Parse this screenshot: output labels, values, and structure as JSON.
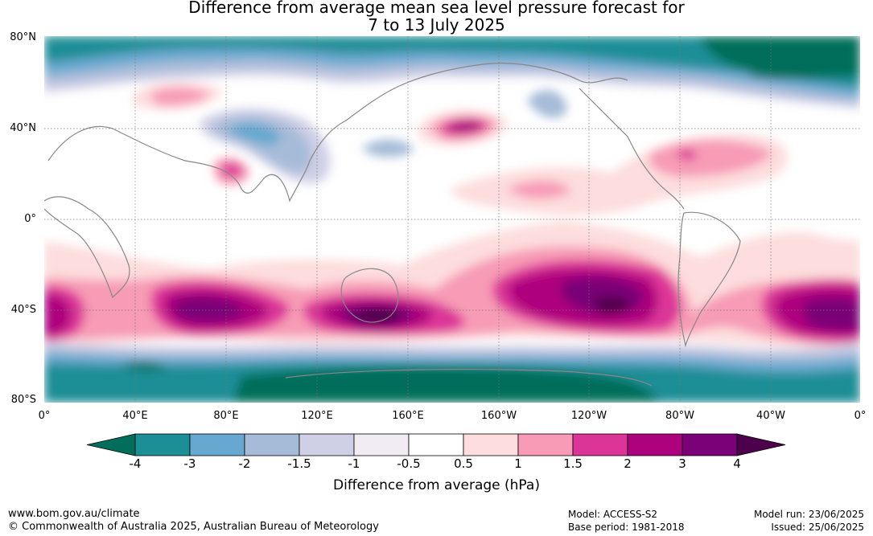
{
  "title": {
    "line1": "Difference from average mean sea level pressure forecast for",
    "line2": "7 to 13 July 2025"
  },
  "lat_labels": [
    "80°N",
    "40°N",
    "0°",
    "40°S",
    "80°S"
  ],
  "lon_labels": [
    "0°",
    "40°E",
    "80°E",
    "120°E",
    "160°E",
    "160°W",
    "120°W",
    "80°W",
    "40°W",
    "0°"
  ],
  "colorbar": {
    "title": "Difference from average (hPa)",
    "ticks": [
      "-4",
      "-3",
      "-2",
      "-1.5",
      "-1",
      "-0.5",
      "0.5",
      "1",
      "1.5",
      "2",
      "3",
      "4"
    ],
    "colors": [
      "#006e5a",
      "#1c8e96",
      "#66a8cf",
      "#a6bbd8",
      "#cfcfe6",
      "#f1ecf4",
      "#ffffff",
      "#fddddd",
      "#f79bb6",
      "#dd3498",
      "#ae017e",
      "#7a0177",
      "#4d004b"
    ]
  },
  "footer": {
    "site": "www.bom.gov.au/climate",
    "copyright": "© Commonwealth of Australia 2025, Australian Bureau of Meteorology",
    "model": "Model: ACCESS-S2",
    "base_period": "Base period: 1981-2018",
    "model_run": "Model run: 23/06/2025",
    "issued": "Issued: 25/06/2025"
  }
}
